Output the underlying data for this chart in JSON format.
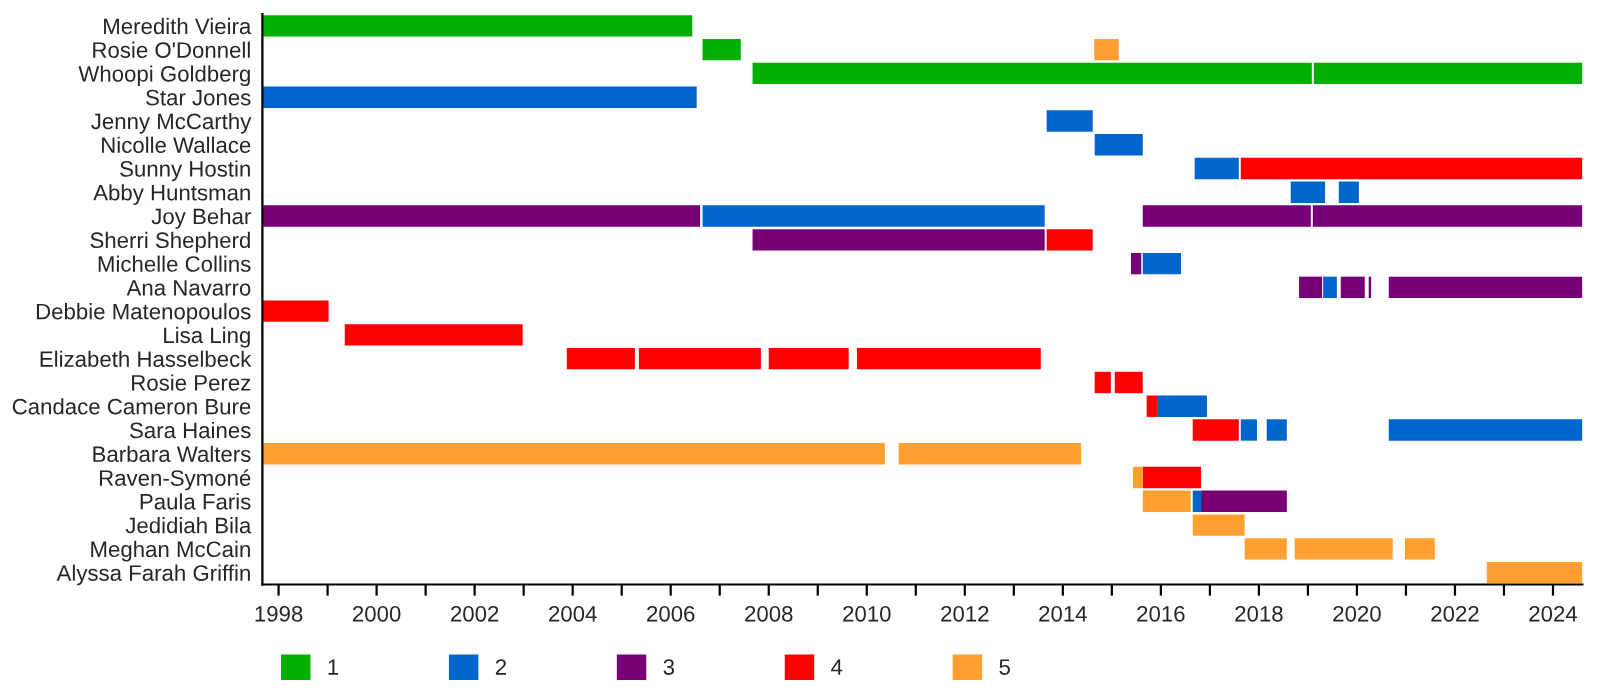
{
  "chart_data": {
    "type": "bar",
    "orientation": "horizontal",
    "legend": "bottom left",
    "grid": false,
    "categories": [
      "Meredith Vieira",
      "Rosie O'Donnell",
      "Whoopi Goldberg",
      "Star Jones",
      "Jenny McCarthy",
      "Nicolle Wallace",
      "Sunny Hostin",
      "Abby Huntsman",
      "Joy Behar",
      "Sherri Shepherd",
      "Michelle Collins",
      "Ana Navarro",
      "Debbie Matenopoulos",
      "Lisa Ling",
      "Elizabeth Hasselbeck",
      "Rosie Perez",
      "Candace Cameron Bure",
      "Sara Haines",
      "Barbara Walters",
      "Raven-Symoné",
      "Paula Faris",
      "Jedidiah Bila",
      "Meghan McCain",
      "Alyssa Farah Griffin"
    ],
    "xlim": [
      1997.67,
      2024.6
    ],
    "xticks": [
      1998,
      {
        "value": 1999,
        "label": null
      },
      2000,
      {
        "value": 2001,
        "label": null
      },
      2002,
      {
        "value": 2003,
        "label": null
      },
      2004,
      {
        "value": 2005,
        "label": null
      },
      2006,
      {
        "value": 2007,
        "label": null
      },
      2008,
      {
        "value": 2009,
        "label": null
      },
      2010,
      {
        "value": 2011,
        "label": null
      },
      2012,
      {
        "value": 2013,
        "label": null
      },
      2014,
      {
        "value": 2015,
        "label": null
      },
      2016,
      {
        "value": 2017,
        "label": null
      },
      2018,
      {
        "value": 2019,
        "label": null
      },
      2020,
      {
        "value": 2021,
        "label": null
      },
      2022,
      {
        "value": 2023,
        "label": null
      },
      2024
    ],
    "series": [
      {
        "name": "1",
        "color": "#00b000",
        "base": [
          1997.67,
          2006.65,
          2007.67,
          null,
          null,
          null,
          null,
          null,
          null,
          null,
          null,
          null,
          null,
          null,
          null,
          null,
          null,
          null,
          null,
          null,
          null,
          null,
          null,
          null
        ],
        "values": [
          8.77,
          0.78,
          11.41,
          null,
          null,
          null,
          null,
          null,
          null,
          null,
          null,
          null,
          null,
          null,
          null,
          null,
          null,
          null,
          null,
          null,
          null,
          null,
          null,
          null
        ]
      },
      {
        "color": "#00b000",
        "base": [
          null,
          null,
          2019.12,
          null,
          null,
          null,
          null,
          null,
          null,
          null,
          null,
          null,
          null,
          null,
          null,
          null,
          null,
          null,
          null,
          null,
          null,
          null,
          null,
          null
        ],
        "values": [
          null,
          null,
          5.48,
          null,
          null,
          null,
          null,
          null,
          null,
          null,
          null,
          null,
          null,
          null,
          null,
          null,
          null,
          null,
          null,
          null,
          null,
          null,
          null,
          null
        ]
      },
      {
        "name": "2",
        "color": "#0066cc",
        "base": [
          null,
          null,
          null,
          1997.67,
          2013.67,
          2014.65,
          2016.69,
          2018.65,
          2006.65,
          null,
          2015.63,
          2019.31,
          null,
          null,
          null,
          null,
          2015.92,
          2017.63,
          null,
          null,
          2016.65,
          null,
          null,
          null
        ],
        "values": [
          null,
          null,
          null,
          8.86,
          0.94,
          0.98,
          0.9,
          0.7,
          6.98,
          null,
          0.78,
          0.28,
          null,
          null,
          null,
          null,
          1.02,
          0.33,
          null,
          null,
          0.17,
          null,
          null,
          null
        ]
      },
      {
        "color": "#0066cc",
        "base": [
          null,
          null,
          null,
          null,
          null,
          null,
          null,
          2019.63,
          null,
          null,
          null,
          null,
          null,
          null,
          null,
          null,
          null,
          2018.16,
          null,
          null,
          null,
          null,
          null,
          null
        ],
        "values": [
          null,
          null,
          null,
          null,
          null,
          null,
          null,
          0.41,
          null,
          null,
          null,
          null,
          null,
          null,
          null,
          null,
          null,
          0.41,
          null,
          null,
          null,
          null,
          null,
          null
        ]
      },
      {
        "color": "#0066cc",
        "base": [
          null,
          null,
          null,
          null,
          null,
          null,
          null,
          null,
          null,
          null,
          null,
          null,
          null,
          null,
          null,
          null,
          null,
          2020.65,
          null,
          null,
          null,
          null,
          null,
          null
        ],
        "values": [
          null,
          null,
          null,
          null,
          null,
          null,
          null,
          null,
          null,
          null,
          null,
          null,
          null,
          null,
          null,
          null,
          null,
          3.95,
          null,
          null,
          null,
          null,
          null,
          null
        ]
      },
      {
        "name": "3",
        "color": "#770077",
        "base": [
          null,
          null,
          null,
          null,
          null,
          null,
          null,
          null,
          1997.67,
          2007.67,
          2015.39,
          2018.82,
          null,
          null,
          null,
          null,
          null,
          null,
          null,
          null,
          2016.82,
          null,
          null,
          null
        ],
        "values": [
          null,
          null,
          null,
          null,
          null,
          null,
          null,
          null,
          8.93,
          5.96,
          0.21,
          0.47,
          null,
          null,
          null,
          null,
          null,
          null,
          null,
          null,
          1.75,
          null,
          null,
          null
        ]
      },
      {
        "color": "#770077",
        "base": [
          null,
          null,
          null,
          null,
          null,
          null,
          null,
          null,
          2015.63,
          null,
          null,
          2019.67,
          null,
          null,
          null,
          null,
          null,
          null,
          null,
          null,
          null,
          null,
          null,
          null
        ],
        "values": [
          null,
          null,
          null,
          null,
          null,
          null,
          null,
          null,
          3.43,
          null,
          null,
          0.49,
          null,
          null,
          null,
          null,
          null,
          null,
          null,
          null,
          null,
          null,
          null,
          null
        ]
      },
      {
        "color": "#770077",
        "base": [
          null,
          null,
          null,
          null,
          null,
          null,
          null,
          null,
          2019.1,
          null,
          null,
          2020.24,
          null,
          null,
          null,
          null,
          null,
          null,
          null,
          null,
          null,
          null,
          null,
          null
        ],
        "values": [
          null,
          null,
          null,
          null,
          null,
          null,
          null,
          null,
          5.5,
          null,
          null,
          0.05,
          null,
          null,
          null,
          null,
          null,
          null,
          null,
          null,
          null,
          null,
          null,
          null
        ]
      },
      {
        "color": "#770077",
        "base": [
          null,
          null,
          null,
          null,
          null,
          null,
          null,
          null,
          null,
          null,
          null,
          2020.65,
          null,
          null,
          null,
          null,
          null,
          null,
          null,
          null,
          null,
          null,
          null,
          null
        ],
        "values": [
          null,
          null,
          null,
          null,
          null,
          null,
          null,
          null,
          null,
          null,
          null,
          3.95,
          null,
          null,
          null,
          null,
          null,
          null,
          null,
          null,
          null,
          null,
          null,
          null
        ]
      },
      {
        "name": "4",
        "color": "#ff0000",
        "base": [
          null,
          null,
          null,
          null,
          null,
          null,
          2017.63,
          null,
          null,
          2013.67,
          null,
          null,
          1997.67,
          1999.35,
          2003.88,
          2014.65,
          2015.71,
          2016.65,
          null,
          2015.63,
          null,
          null,
          null,
          null
        ],
        "values": [
          null,
          null,
          null,
          null,
          null,
          null,
          6.97,
          null,
          null,
          0.94,
          null,
          null,
          1.35,
          3.63,
          1.39,
          0.33,
          0.21,
          0.94,
          null,
          1.19,
          null,
          null,
          null,
          null
        ]
      },
      {
        "color": "#ff0000",
        "base": [
          null,
          null,
          null,
          null,
          null,
          null,
          null,
          null,
          null,
          null,
          null,
          null,
          null,
          null,
          2005.35,
          2015.06,
          null,
          null,
          null,
          null,
          null,
          null,
          null,
          null
        ],
        "values": [
          null,
          null,
          null,
          null,
          null,
          null,
          null,
          null,
          null,
          null,
          null,
          null,
          null,
          null,
          2.49,
          0.57,
          null,
          null,
          null,
          null,
          null,
          null,
          null,
          null
        ]
      },
      {
        "color": "#ff0000",
        "base": [
          null,
          null,
          null,
          null,
          null,
          null,
          null,
          null,
          null,
          null,
          null,
          null,
          null,
          null,
          2008.0,
          null,
          null,
          null,
          null,
          null,
          null,
          null,
          null,
          null
        ],
        "values": [
          null,
          null,
          null,
          null,
          null,
          null,
          null,
          null,
          null,
          null,
          null,
          null,
          null,
          null,
          1.63,
          null,
          null,
          null,
          null,
          null,
          null,
          null,
          null,
          null
        ]
      },
      {
        "color": "#ff0000",
        "base": [
          null,
          null,
          null,
          null,
          null,
          null,
          null,
          null,
          null,
          null,
          null,
          null,
          null,
          null,
          2009.8,
          null,
          null,
          null,
          null,
          null,
          null,
          null,
          null,
          null
        ],
        "values": [
          null,
          null,
          null,
          null,
          null,
          null,
          null,
          null,
          null,
          null,
          null,
          null,
          null,
          null,
          3.75,
          null,
          null,
          null,
          null,
          null,
          null,
          null,
          null,
          null
        ]
      },
      {
        "name": "5",
        "color": "#ffa030",
        "base": [
          null,
          2014.64,
          null,
          null,
          null,
          null,
          null,
          null,
          null,
          null,
          null,
          null,
          null,
          null,
          null,
          null,
          null,
          null,
          1997.67,
          2015.43,
          2015.63,
          2016.65,
          2017.71,
          2022.65
        ],
        "values": [
          null,
          0.5,
          null,
          null,
          null,
          null,
          null,
          null,
          null,
          null,
          null,
          null,
          null,
          null,
          null,
          null,
          null,
          null,
          12.7,
          0.2,
          0.98,
          1.06,
          0.86,
          1.95
        ]
      },
      {
        "color": "#ffa030",
        "base": [
          null,
          null,
          null,
          null,
          null,
          null,
          null,
          null,
          null,
          null,
          null,
          null,
          null,
          null,
          null,
          null,
          null,
          null,
          2010.65,
          null,
          null,
          null,
          2018.73,
          null
        ],
        "values": [
          null,
          null,
          null,
          null,
          null,
          null,
          null,
          null,
          null,
          null,
          null,
          null,
          null,
          null,
          null,
          null,
          null,
          null,
          3.72,
          null,
          null,
          null,
          2.0,
          null
        ]
      },
      {
        "color": "#ffa030",
        "base": [
          null,
          null,
          null,
          null,
          null,
          null,
          null,
          null,
          null,
          null,
          null,
          null,
          null,
          null,
          null,
          null,
          null,
          null,
          null,
          null,
          null,
          null,
          2020.98,
          null
        ],
        "values": [
          null,
          null,
          null,
          null,
          null,
          null,
          null,
          null,
          null,
          null,
          null,
          null,
          null,
          null,
          null,
          null,
          null,
          null,
          null,
          null,
          null,
          null,
          0.61,
          null
        ]
      }
    ]
  }
}
